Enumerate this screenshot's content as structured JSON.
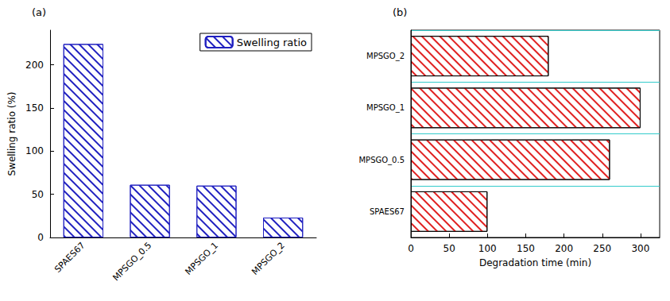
{
  "chart_data": [
    {
      "type": "bar",
      "title": "(a)",
      "ylabel": "Swelling ratio (%)",
      "categories": [
        "SPAES67",
        "MPSGO_0.5",
        "MPSGO_1",
        "MPSGO_2"
      ],
      "series": [
        {
          "name": "Swelling ratio",
          "color": "#2020c0",
          "values": [
            224,
            61,
            60,
            23
          ]
        }
      ],
      "ylim": [
        0,
        240
      ],
      "yticks": [
        0,
        50,
        100,
        150,
        200
      ],
      "legend": "upper right"
    },
    {
      "type": "bar",
      "title": "(b)",
      "xlabel": "Degradation time (min)",
      "orientation": "horizontal",
      "categories": [
        "SPAES67",
        "MPSGO_0.5",
        "MPSGO_1",
        "MPSGO_2"
      ],
      "values": [
        100,
        260,
        300,
        180
      ],
      "color": "#e02020",
      "xlim": [
        0,
        325
      ],
      "xticks": [
        0,
        50,
        100,
        150,
        200,
        250,
        300
      ]
    }
  ]
}
